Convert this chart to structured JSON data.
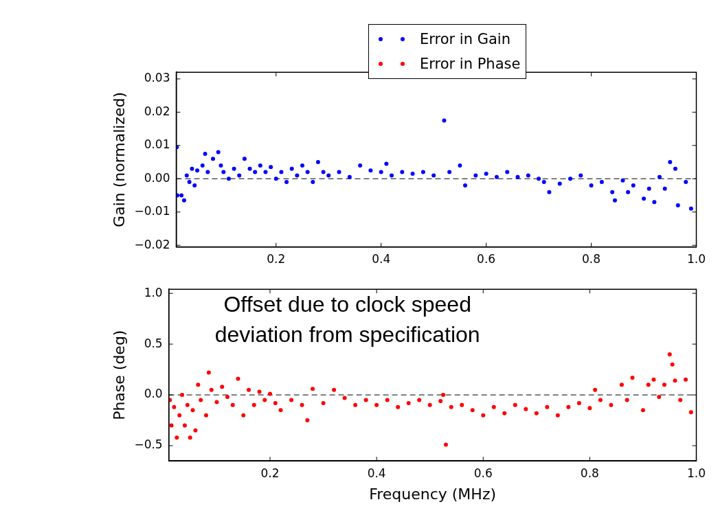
{
  "chart_data": [
    {
      "type": "scatter",
      "ylabel": "Gain (normalized)",
      "legend": "top",
      "marker": "circle",
      "grid": false,
      "xlim": [
        0.01,
        1.0
      ],
      "xticks": [
        0.2,
        0.4,
        0.6,
        0.8,
        {
          "value": 1.0,
          "label": "1.0"
        }
      ],
      "ylim": [
        -0.0205,
        0.032
      ],
      "yticks": [
        {
          "value": -0.02,
          "label": "−0.02"
        },
        {
          "value": -0.01,
          "label": "−0.01"
        },
        {
          "value": 0,
          "label": "0.00"
        },
        {
          "value": 0.01,
          "label": "0.01"
        },
        {
          "value": 0.02,
          "label": "0.02"
        },
        {
          "value": 0.03,
          "label": "0.03"
        }
      ],
      "ref_lines": [
        {
          "axis": "y",
          "value": 0,
          "color": "#000000",
          "line_style": "dashed"
        }
      ],
      "series": [
        {
          "name": "Error in Gain",
          "color": "#0000ff",
          "x": [
            0.011,
            0.012,
            0.02,
            0.025,
            0.03,
            0.035,
            0.04,
            0.045,
            0.05,
            0.06,
            0.065,
            0.07,
            0.08,
            0.09,
            0.095,
            0.1,
            0.11,
            0.12,
            0.13,
            0.14,
            0.15,
            0.16,
            0.17,
            0.18,
            0.19,
            0.2,
            0.21,
            0.22,
            0.23,
            0.24,
            0.25,
            0.26,
            0.27,
            0.28,
            0.29,
            0.3,
            0.32,
            0.34,
            0.36,
            0.38,
            0.4,
            0.41,
            0.42,
            0.44,
            0.46,
            0.48,
            0.5,
            0.52,
            0.53,
            0.55,
            0.56,
            0.58,
            0.6,
            0.62,
            0.64,
            0.66,
            0.68,
            0.7,
            0.71,
            0.72,
            0.74,
            0.76,
            0.78,
            0.8,
            0.82,
            0.84,
            0.845,
            0.86,
            0.87,
            0.88,
            0.9,
            0.91,
            0.92,
            0.93,
            0.94,
            0.95,
            0.96,
            0.965,
            0.98,
            0.99
          ],
          "values": [
            0.0095,
            -0.005,
            -0.005,
            -0.0065,
            0.001,
            -0.001,
            0.003,
            -0.002,
            0.0025,
            0.004,
            0.0075,
            0.002,
            0.006,
            0.008,
            0.004,
            0.002,
            0,
            0.003,
            0.001,
            0.006,
            0.003,
            0.002,
            0.004,
            0.002,
            0.0035,
            0,
            0.002,
            -0.001,
            0.003,
            0.001,
            0.004,
            0.002,
            -0.001,
            0.005,
            0.002,
            0.001,
            0.002,
            0.0005,
            0.004,
            0.0025,
            0.002,
            0.0045,
            0.001,
            0.002,
            0.0015,
            0.002,
            0.001,
            0.0175,
            0.002,
            0.004,
            -0.002,
            0.001,
            0.0015,
            0.0005,
            0.002,
            0.0005,
            0.001,
            0,
            -0.001,
            -0.004,
            -0.0015,
            0,
            0.001,
            -0.002,
            -0.001,
            -0.004,
            -0.0065,
            -0.0005,
            -0.004,
            -0.002,
            -0.006,
            -0.003,
            -0.007,
            0.0005,
            -0.003,
            0.005,
            0.003,
            -0.008,
            -0.001,
            -0.009
          ]
        }
      ]
    },
    {
      "type": "scatter",
      "xlabel": "Frequency (MHz)",
      "ylabel": "Phase (deg)",
      "legend": "top",
      "marker": "circle",
      "grid": false,
      "xlim": [
        0.01,
        1.0
      ],
      "xticks": [
        0.2,
        0.4,
        0.6,
        0.8,
        {
          "value": 1.0,
          "label": "1.0"
        }
      ],
      "ylim": [
        -0.65,
        1.04
      ],
      "yticks": [
        {
          "value": -0.5,
          "label": "−0.5"
        },
        {
          "value": 0,
          "label": "0.0"
        },
        {
          "value": 0.5,
          "label": "0.5"
        },
        {
          "value": 1.0,
          "label": "1.0"
        }
      ],
      "ref_lines": [
        {
          "axis": "y",
          "value": 0,
          "color": "#000000",
          "line_style": "dashed"
        }
      ],
      "annotations": [
        "Offset due to clock speed\ndeviation from specification"
      ],
      "series": [
        {
          "name": "Error in Phase",
          "color": "#ff0000",
          "x": [
            0.012,
            0.015,
            0.02,
            0.025,
            0.03,
            0.035,
            0.04,
            0.045,
            0.05,
            0.055,
            0.06,
            0.065,
            0.07,
            0.08,
            0.085,
            0.09,
            0.1,
            0.11,
            0.12,
            0.13,
            0.14,
            0.15,
            0.16,
            0.17,
            0.18,
            0.19,
            0.2,
            0.21,
            0.22,
            0.24,
            0.26,
            0.27,
            0.28,
            0.3,
            0.32,
            0.34,
            0.36,
            0.38,
            0.4,
            0.42,
            0.44,
            0.46,
            0.48,
            0.5,
            0.52,
            0.525,
            0.53,
            0.54,
            0.56,
            0.58,
            0.6,
            0.62,
            0.64,
            0.66,
            0.68,
            0.7,
            0.72,
            0.74,
            0.76,
            0.78,
            0.8,
            0.81,
            0.82,
            0.84,
            0.86,
            0.87,
            0.88,
            0.9,
            0.91,
            0.92,
            0.93,
            0.94,
            0.95,
            0.955,
            0.96,
            0.97,
            0.98,
            0.99
          ],
          "values": [
            -0.05,
            -0.3,
            -0.12,
            -0.42,
            -0.2,
            0.0,
            -0.3,
            -0.1,
            -0.42,
            -0.15,
            -0.35,
            0.1,
            -0.05,
            -0.2,
            0.22,
            0.05,
            -0.07,
            0.08,
            -0.02,
            -0.1,
            0.16,
            -0.2,
            0.05,
            -0.1,
            0.03,
            -0.05,
            0.01,
            -0.08,
            -0.15,
            -0.05,
            -0.1,
            -0.25,
            0.06,
            -0.08,
            0.05,
            -0.03,
            -0.1,
            -0.05,
            -0.1,
            -0.05,
            -0.12,
            -0.08,
            -0.05,
            -0.1,
            -0.06,
            0.0,
            -0.49,
            -0.12,
            -0.1,
            -0.15,
            -0.2,
            -0.12,
            -0.18,
            -0.1,
            -0.14,
            -0.18,
            -0.12,
            -0.2,
            -0.12,
            -0.08,
            -0.13,
            0.05,
            -0.05,
            -0.1,
            0.1,
            -0.05,
            0.17,
            -0.15,
            0.1,
            0.15,
            -0.02,
            0.1,
            0.4,
            0.3,
            0.14,
            -0.05,
            0.15,
            -0.17
          ]
        }
      ]
    }
  ]
}
